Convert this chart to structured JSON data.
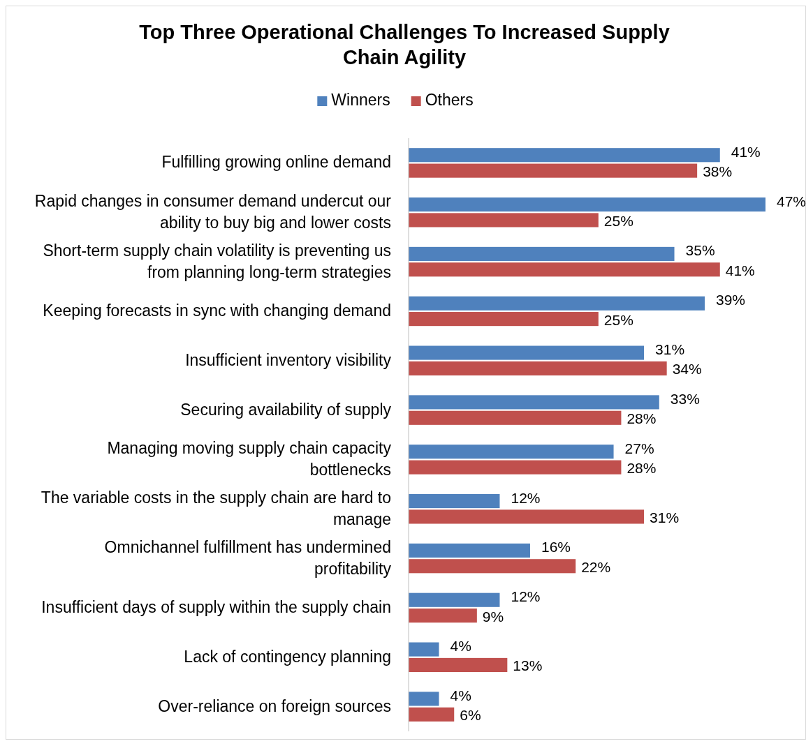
{
  "chart_data": {
    "type": "bar",
    "orientation": "horizontal",
    "title": "Top Three Operational Challenges To Increased Supply Chain Agility",
    "categories": [
      "Fulfilling growing online demand",
      "Rapid changes in consumer demand undercut our ability to buy big and lower costs",
      "Short-term supply chain volatility is preventing us from planning long-term strategies",
      "Keeping forecasts in sync with changing demand",
      "Insufficient inventory visibility",
      "Securing availability of supply",
      "Managing moving supply chain capacity bottlenecks",
      "The variable costs in the supply chain are hard to manage",
      "Omnichannel fulfillment has undermined profitability",
      "Insufficient days of supply within the supply chain",
      "Lack of contingency planning",
      "Over-reliance on foreign sources"
    ],
    "series": [
      {
        "name": "Winners",
        "color": "#4f81bd",
        "values": [
          41,
          47,
          35,
          39,
          31,
          33,
          27,
          12,
          16,
          12,
          4,
          4
        ],
        "value_labels": [
          "41%",
          "47%",
          "35%",
          "39%",
          "31%",
          "33%",
          "27%",
          "12%",
          "16%",
          "12%",
          "4%",
          "4%"
        ]
      },
      {
        "name": "Others",
        "color": "#c0504d",
        "values": [
          38,
          25,
          41,
          25,
          34,
          28,
          28,
          31,
          22,
          9,
          13,
          6
        ],
        "value_labels": [
          "38%",
          "25%",
          "41%",
          "25%",
          "34%",
          "28%",
          "28%",
          "31%",
          "22%",
          "9%",
          "13%",
          "6%"
        ]
      }
    ],
    "legend": "top",
    "grid": false
  }
}
